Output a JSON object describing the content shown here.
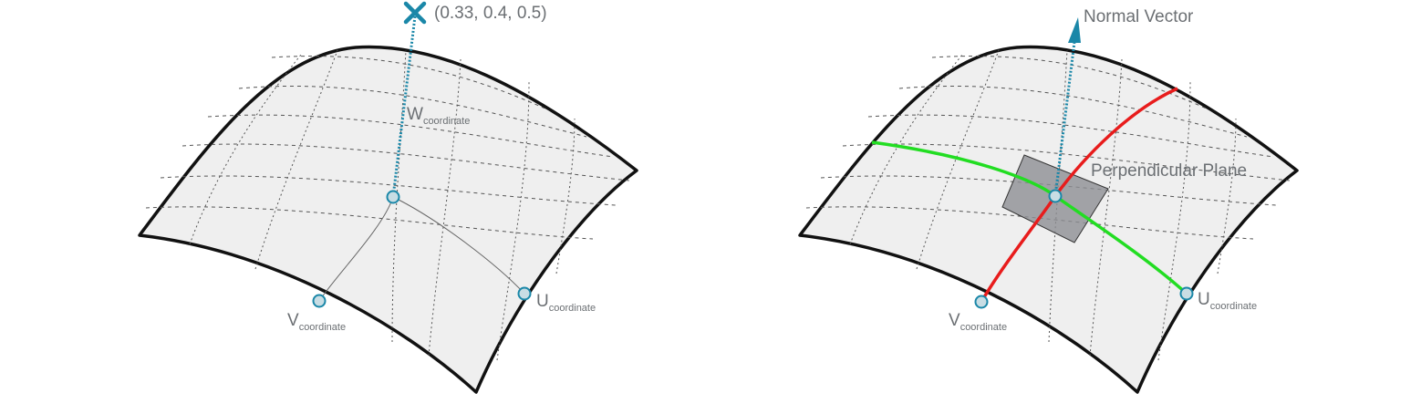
{
  "colors": {
    "surface_fill": "#efefef",
    "outline": "#111111",
    "grid": "#555555",
    "point_fill": "#c8dde4",
    "point_stroke": "#1a87a8",
    "marker": "#1a87a8",
    "label": "#6b6f73",
    "u_curve": "#22dd22",
    "v_curve": "#e81c1c",
    "plane_fill": "#8d8f93"
  },
  "left": {
    "point_label": "(0.33, 0.4, 0.5)",
    "point_marker_icon": "x-marker-icon",
    "w_label": {
      "main": "W",
      "sub": "coordinate"
    },
    "u_label": {
      "main": "U",
      "sub": "coordinate"
    },
    "v_label": {
      "main": "V",
      "sub": "coordinate"
    }
  },
  "right": {
    "normal_label": "Normal Vector",
    "normal_icon": "arrow-up-icon",
    "plane_label": "Perpendicular Plane",
    "u_label": {
      "main": "U",
      "sub": "coordinate"
    },
    "v_label": {
      "main": "V",
      "sub": "coordinate"
    }
  }
}
